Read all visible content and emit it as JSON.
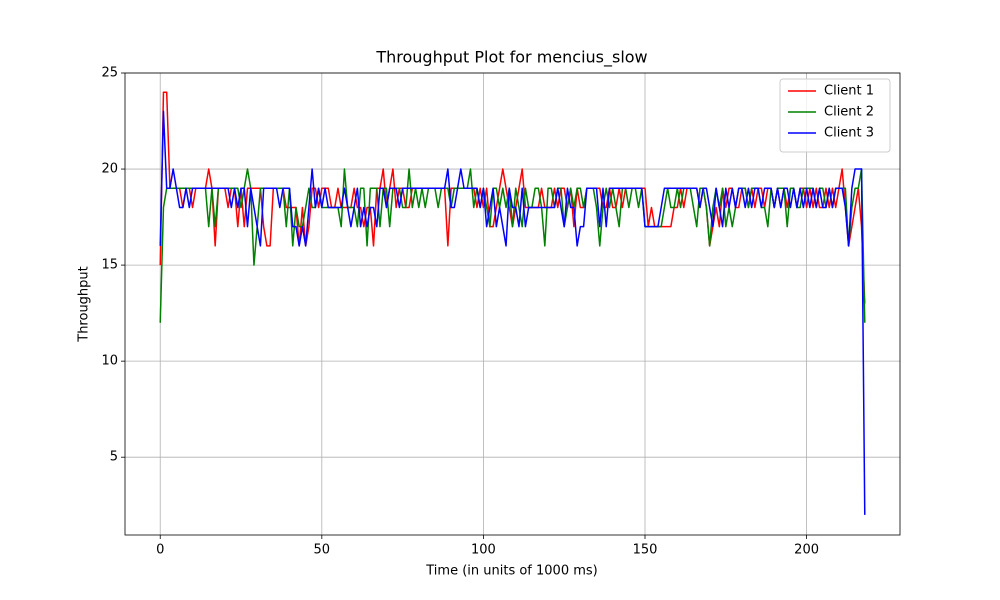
{
  "chart_data": {
    "type": "line",
    "title": "Throughput Plot for mencius_slow",
    "x_label": "Time (in units of 1000 ms)",
    "y_label": "Throughput",
    "xlim": [
      -10.9,
      228.9
    ],
    "ylim": [
      0.95,
      25
    ],
    "xticks": [
      0,
      50,
      100,
      150,
      200
    ],
    "yticks": [
      5,
      10,
      15,
      20,
      25
    ],
    "grid": true,
    "legend": "upper right",
    "x": [
      0,
      1,
      2,
      3,
      4,
      5,
      6,
      7,
      8,
      9,
      10,
      11,
      12,
      13,
      14,
      15,
      16,
      17,
      18,
      19,
      20,
      21,
      22,
      23,
      24,
      25,
      26,
      27,
      28,
      29,
      30,
      31,
      32,
      33,
      34,
      35,
      36,
      37,
      38,
      39,
      40,
      41,
      42,
      43,
      44,
      45,
      46,
      47,
      48,
      49,
      50,
      51,
      52,
      53,
      54,
      55,
      56,
      57,
      58,
      59,
      60,
      61,
      62,
      63,
      64,
      65,
      66,
      67,
      68,
      69,
      70,
      71,
      72,
      73,
      74,
      75,
      76,
      77,
      78,
      79,
      80,
      81,
      82,
      83,
      84,
      85,
      86,
      87,
      88,
      89,
      90,
      91,
      92,
      93,
      94,
      95,
      96,
      97,
      98,
      99,
      100,
      101,
      102,
      103,
      104,
      105,
      106,
      107,
      108,
      109,
      110,
      111,
      112,
      113,
      114,
      115,
      116,
      117,
      118,
      119,
      120,
      121,
      122,
      123,
      124,
      125,
      126,
      127,
      128,
      129,
      130,
      131,
      132,
      133,
      134,
      135,
      136,
      137,
      138,
      139,
      140,
      141,
      142,
      143,
      144,
      145,
      146,
      147,
      148,
      149,
      150,
      151,
      152,
      153,
      154,
      155,
      156,
      157,
      158,
      159,
      160,
      161,
      162,
      163,
      164,
      165,
      166,
      167,
      168,
      169,
      170,
      171,
      172,
      173,
      174,
      175,
      176,
      177,
      178,
      179,
      180,
      181,
      182,
      183,
      184,
      185,
      186,
      187,
      188,
      189,
      190,
      191,
      192,
      193,
      194,
      195,
      196,
      197,
      198,
      199,
      200,
      201,
      202,
      203,
      204,
      205,
      206,
      207,
      208,
      209,
      210,
      211,
      212,
      213,
      214,
      215,
      216,
      217,
      218
    ],
    "series": [
      {
        "name": "Client 1",
        "color": "#ff0000",
        "values": [
          15,
          24,
          24,
          19,
          19,
          19,
          19,
          18,
          19,
          19,
          18,
          19,
          19,
          19,
          19,
          20,
          19,
          16,
          19,
          19,
          19,
          18,
          19,
          19,
          17,
          19,
          17,
          19,
          19,
          19,
          19,
          19,
          17,
          16,
          16,
          19,
          19,
          19,
          19,
          18,
          18,
          18,
          18,
          16,
          18,
          16,
          17,
          19,
          19,
          18,
          19,
          19,
          19,
          18,
          18,
          19,
          18,
          18,
          18,
          18,
          19,
          18,
          18,
          17,
          18,
          18,
          16,
          19,
          19,
          20,
          18,
          19,
          20,
          18,
          19,
          19,
          18,
          18,
          19,
          19,
          19,
          19,
          19,
          19,
          19,
          19,
          19,
          19,
          19,
          16,
          19,
          19,
          19,
          19,
          19,
          19,
          19,
          19,
          18,
          19,
          18,
          19,
          17,
          17,
          18,
          19,
          20,
          19,
          18,
          17,
          18,
          19,
          20,
          18,
          18,
          18,
          18,
          18,
          19,
          18,
          18,
          18,
          19,
          18,
          19,
          19,
          18,
          19,
          17,
          19,
          18,
          18,
          19,
          19,
          19,
          19,
          19,
          18,
          18,
          19,
          18,
          18,
          19,
          18,
          19,
          19,
          19,
          19,
          19,
          19,
          19,
          17,
          18,
          17,
          17,
          17,
          17,
          17,
          17,
          18,
          18,
          19,
          18,
          19,
          19,
          19,
          19,
          18,
          19,
          18,
          16,
          17,
          18,
          17,
          19,
          18,
          19,
          19,
          18,
          18,
          19,
          19,
          18,
          19,
          18,
          19,
          19,
          18,
          19,
          19,
          18,
          19,
          18,
          19,
          18,
          19,
          19,
          18,
          19,
          19,
          18,
          19,
          18,
          19,
          18,
          18,
          19,
          18,
          19,
          18,
          19,
          20,
          18,
          16,
          17,
          18,
          19,
          17,
          13
        ]
      },
      {
        "name": "Client 2",
        "color": "#008000",
        "values": [
          12,
          18,
          19,
          19,
          19,
          19,
          19,
          19,
          19,
          19,
          19,
          19,
          19,
          19,
          19,
          17,
          19,
          17,
          19,
          19,
          19,
          19,
          19,
          19,
          19,
          18,
          19,
          20,
          19,
          15,
          17,
          19,
          19,
          19,
          19,
          19,
          19,
          19,
          19,
          17,
          19,
          16,
          18,
          17,
          17,
          18,
          19,
          18,
          18,
          19,
          18,
          18,
          18,
          18,
          18,
          18,
          17,
          20,
          18,
          18,
          18,
          17,
          19,
          19,
          16,
          19,
          19,
          19,
          17,
          19,
          19,
          17,
          19,
          19,
          19,
          18,
          18,
          20,
          18,
          19,
          18,
          19,
          18,
          19,
          19,
          19,
          18,
          19,
          19,
          19,
          18,
          19,
          19,
          19,
          19,
          19,
          20,
          18,
          19,
          18,
          19,
          18,
          17,
          19,
          19,
          18,
          19,
          18,
          19,
          17,
          19,
          18,
          17,
          19,
          18,
          18,
          19,
          19,
          18,
          16,
          19,
          19,
          18,
          19,
          19,
          17,
          18,
          19,
          18,
          19,
          19,
          18,
          19,
          19,
          19,
          18,
          16,
          18,
          19,
          18,
          19,
          18,
          17,
          19,
          19,
          18,
          19,
          19,
          18,
          19,
          17,
          17,
          17,
          17,
          17,
          17,
          18,
          19,
          18,
          18,
          19,
          18,
          19,
          19,
          19,
          18,
          17,
          19,
          19,
          18,
          16,
          18,
          19,
          18,
          19,
          17,
          18,
          17,
          18,
          19,
          19,
          19,
          18,
          19,
          19,
          19,
          18,
          18,
          17,
          19,
          18,
          19,
          19,
          19,
          17,
          19,
          19,
          18,
          18,
          19,
          19,
          19,
          19,
          18,
          19,
          19,
          18,
          19,
          18,
          19,
          19,
          19,
          19,
          16,
          18,
          19,
          19,
          20,
          12
        ]
      },
      {
        "name": "Client 3",
        "color": "#0000ff",
        "values": [
          16,
          23,
          19,
          19,
          20,
          19,
          18,
          18,
          19,
          18,
          19,
          19,
          19,
          19,
          19,
          19,
          19,
          19,
          19,
          19,
          19,
          19,
          18,
          19,
          18,
          19,
          19,
          17,
          19,
          18,
          17,
          16,
          19,
          19,
          19,
          19,
          19,
          18,
          19,
          19,
          19,
          17,
          17,
          16,
          17,
          16,
          18,
          20,
          18,
          19,
          18,
          19,
          18,
          18,
          18,
          18,
          18,
          19,
          18,
          17,
          18,
          19,
          17,
          18,
          17,
          18,
          18,
          17,
          19,
          19,
          18,
          19,
          19,
          19,
          18,
          19,
          19,
          19,
          19,
          19,
          19,
          19,
          19,
          19,
          19,
          19,
          19,
          19,
          19,
          20,
          18,
          18,
          19,
          20,
          19,
          19,
          19,
          19,
          19,
          18,
          19,
          17,
          18,
          19,
          17,
          18,
          17,
          16,
          19,
          18,
          18,
          17,
          19,
          17,
          18,
          18,
          18,
          18,
          18,
          18,
          18,
          18,
          18,
          19,
          18,
          17,
          19,
          18,
          18,
          16,
          17,
          17,
          19,
          19,
          19,
          19,
          17,
          19,
          17,
          19,
          19,
          19,
          19,
          19,
          19,
          19,
          19,
          19,
          19,
          19,
          17,
          17,
          17,
          17,
          17,
          18,
          19,
          19,
          19,
          19,
          19,
          19,
          19,
          19,
          19,
          19,
          19,
          18,
          19,
          19,
          18,
          17,
          19,
          18,
          17,
          19,
          18,
          19,
          18,
          19,
          19,
          18,
          19,
          18,
          19,
          19,
          18,
          19,
          19,
          19,
          18,
          19,
          18,
          19,
          19,
          18,
          19,
          18,
          19,
          18,
          19,
          18,
          19,
          18,
          19,
          18,
          18,
          19,
          18,
          19,
          19,
          19,
          18,
          16,
          19,
          20,
          20,
          20,
          2
        ]
      }
    ]
  }
}
